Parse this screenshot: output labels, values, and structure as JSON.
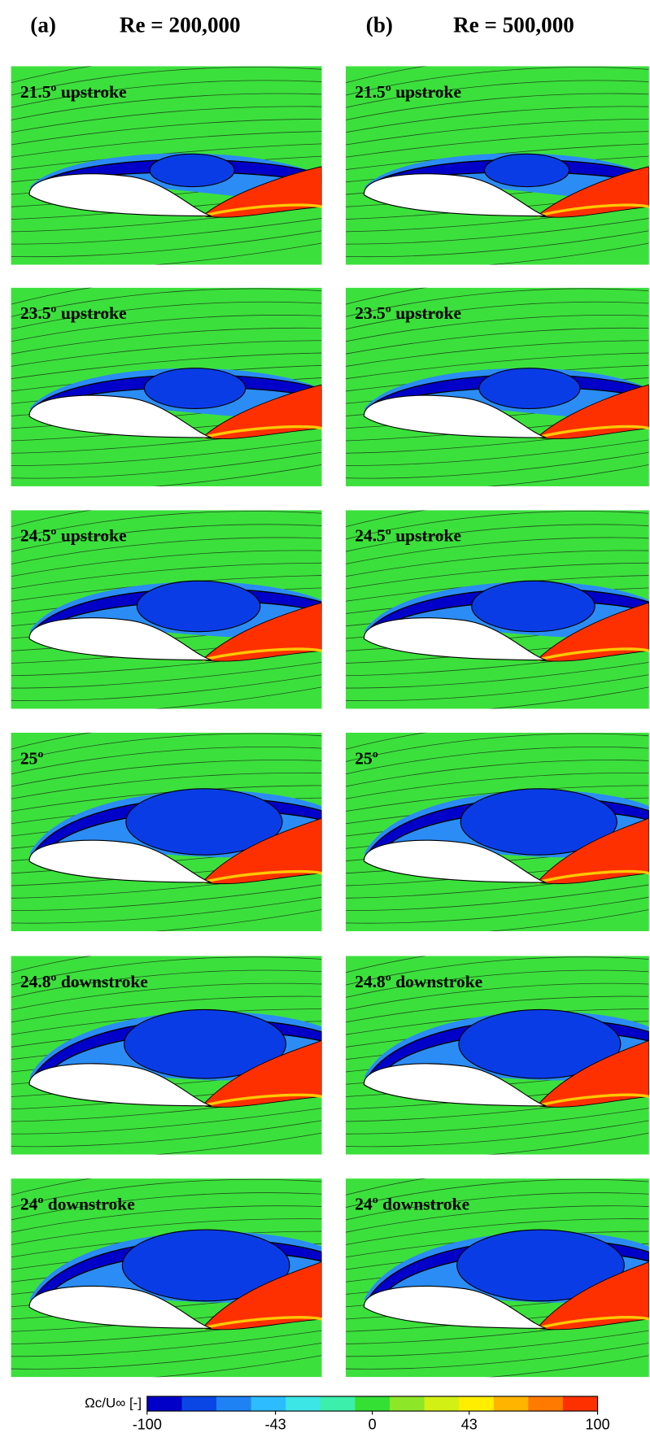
{
  "header": {
    "left_tag": "(a)",
    "left_re": "Re = 200,000",
    "right_tag": "(b)",
    "right_re": "Re = 500,000"
  },
  "panels": {
    "left": [
      "21.5º upstroke",
      "23.5º upstroke",
      "24.5º upstroke",
      "25º",
      "24.8º downstroke",
      "24º downstroke"
    ],
    "right": [
      "21.5º upstroke",
      "23.5º upstroke",
      "24.5º upstroke",
      "25º",
      "24.8º downstroke",
      "24º downstroke"
    ]
  },
  "colorbar": {
    "label": "Ωc/U∞ [-]",
    "range": [
      -100,
      100
    ],
    "ticks": [
      -100,
      -43,
      0,
      43,
      100
    ],
    "colors": [
      "#0000c8",
      "#0a46e6",
      "#1e82f5",
      "#2cbcff",
      "#3ce6e6",
      "#3cefaa",
      "#34e034",
      "#8ee628",
      "#d2f014",
      "#ffee00",
      "#ffb400",
      "#ff7a00",
      "#ff3000"
    ]
  }
}
